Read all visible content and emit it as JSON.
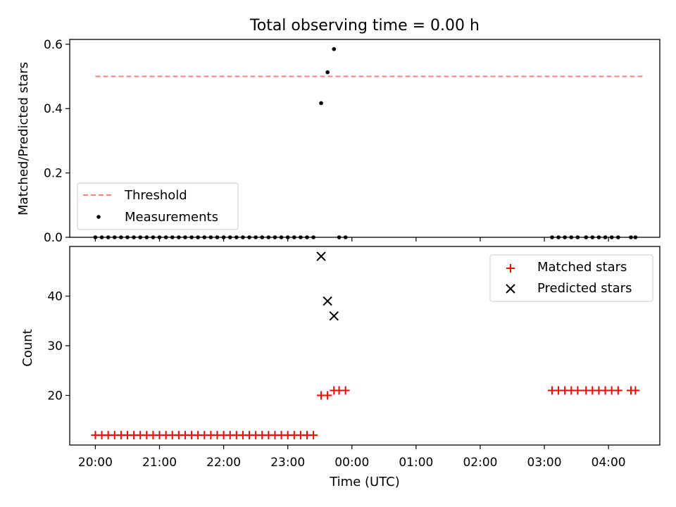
{
  "title": "Total observing time = 0.00 h",
  "chart_data": [
    {
      "type": "scatter",
      "panel": "top",
      "ylabel": "Matched/Predicted stars",
      "ylim": [
        0,
        0.615
      ],
      "yticks": [
        0.0,
        0.2,
        0.4,
        0.6
      ],
      "ytick_labels": [
        "0.0",
        "0.2",
        "0.4",
        "0.6"
      ],
      "grid": false,
      "legend_position": "lower-left",
      "series": [
        {
          "name": "Threshold",
          "kind": "line",
          "style": "dashed",
          "color": "#ff7f7f",
          "points": [
            [
              0.0,
              0.5
            ],
            [
              8.55,
              0.5
            ]
          ]
        },
        {
          "name": "Measurements",
          "kind": "scatter",
          "marker": "dot",
          "color": "#000000",
          "points": [
            [
              0.0,
              0
            ],
            [
              0.1,
              0
            ],
            [
              0.2,
              0
            ],
            [
              0.3,
              0
            ],
            [
              0.4,
              0
            ],
            [
              0.5,
              0
            ],
            [
              0.6,
              0
            ],
            [
              0.7,
              0
            ],
            [
              0.8,
              0
            ],
            [
              0.9,
              0
            ],
            [
              1.0,
              0
            ],
            [
              1.1,
              0
            ],
            [
              1.2,
              0
            ],
            [
              1.3,
              0
            ],
            [
              1.4,
              0
            ],
            [
              1.5,
              0
            ],
            [
              1.6,
              0
            ],
            [
              1.7,
              0
            ],
            [
              1.8,
              0
            ],
            [
              1.9,
              0
            ],
            [
              2.0,
              0
            ],
            [
              2.1,
              0
            ],
            [
              2.2,
              0
            ],
            [
              2.3,
              0
            ],
            [
              2.4,
              0
            ],
            [
              2.5,
              0
            ],
            [
              2.6,
              0
            ],
            [
              2.7,
              0
            ],
            [
              2.8,
              0
            ],
            [
              2.9,
              0
            ],
            [
              3.0,
              0
            ],
            [
              3.1,
              0
            ],
            [
              3.2,
              0
            ],
            [
              3.3,
              0
            ],
            [
              3.4,
              0
            ],
            [
              3.52,
              0.417
            ],
            [
              3.62,
              0.513
            ],
            [
              3.72,
              0.585
            ],
            [
              3.8,
              0
            ],
            [
              3.9,
              0
            ],
            [
              7.12,
              0
            ],
            [
              7.22,
              0
            ],
            [
              7.32,
              0
            ],
            [
              7.42,
              0
            ],
            [
              7.52,
              0
            ],
            [
              7.65,
              0
            ],
            [
              7.75,
              0
            ],
            [
              7.85,
              0
            ],
            [
              7.95,
              0
            ],
            [
              8.05,
              0
            ],
            [
              8.15,
              0
            ],
            [
              8.35,
              0
            ],
            [
              8.42,
              0
            ]
          ]
        }
      ]
    },
    {
      "type": "scatter",
      "panel": "bottom",
      "xlabel": "Time (UTC)",
      "ylabel": "Count",
      "xlim": [
        -0.4,
        8.8
      ],
      "ylim": [
        10,
        50
      ],
      "yticks": [
        20,
        30,
        40
      ],
      "ytick_labels": [
        "20",
        "30",
        "40"
      ],
      "xticks": [
        0,
        1,
        2,
        3,
        4,
        5,
        6,
        7,
        8
      ],
      "xtick_labels": [
        "20:00",
        "21:00",
        "22:00",
        "23:00",
        "00:00",
        "01:00",
        "02:00",
        "03:00",
        "04:00"
      ],
      "grid": false,
      "legend_position": "upper-right",
      "series": [
        {
          "name": "Matched stars",
          "kind": "scatter",
          "marker": "plus",
          "color": "#ff0000",
          "points": [
            [
              0.0,
              12
            ],
            [
              0.1,
              12
            ],
            [
              0.2,
              12
            ],
            [
              0.3,
              12
            ],
            [
              0.4,
              12
            ],
            [
              0.5,
              12
            ],
            [
              0.6,
              12
            ],
            [
              0.7,
              12
            ],
            [
              0.8,
              12
            ],
            [
              0.9,
              12
            ],
            [
              1.0,
              12
            ],
            [
              1.1,
              12
            ],
            [
              1.2,
              12
            ],
            [
              1.3,
              12
            ],
            [
              1.4,
              12
            ],
            [
              1.5,
              12
            ],
            [
              1.6,
              12
            ],
            [
              1.7,
              12
            ],
            [
              1.8,
              12
            ],
            [
              1.9,
              12
            ],
            [
              2.0,
              12
            ],
            [
              2.1,
              12
            ],
            [
              2.2,
              12
            ],
            [
              2.3,
              12
            ],
            [
              2.4,
              12
            ],
            [
              2.5,
              12
            ],
            [
              2.6,
              12
            ],
            [
              2.7,
              12
            ],
            [
              2.8,
              12
            ],
            [
              2.9,
              12
            ],
            [
              3.0,
              12
            ],
            [
              3.1,
              12
            ],
            [
              3.2,
              12
            ],
            [
              3.3,
              12
            ],
            [
              3.4,
              12
            ],
            [
              3.52,
              20
            ],
            [
              3.62,
              20
            ],
            [
              3.72,
              21
            ],
            [
              3.8,
              21
            ],
            [
              3.9,
              21
            ],
            [
              7.12,
              21
            ],
            [
              7.22,
              21
            ],
            [
              7.32,
              21
            ],
            [
              7.42,
              21
            ],
            [
              7.52,
              21
            ],
            [
              7.65,
              21
            ],
            [
              7.75,
              21
            ],
            [
              7.85,
              21
            ],
            [
              7.95,
              21
            ],
            [
              8.05,
              21
            ],
            [
              8.15,
              21
            ],
            [
              8.35,
              21
            ],
            [
              8.42,
              21
            ]
          ]
        },
        {
          "name": "Predicted stars",
          "kind": "scatter",
          "marker": "x",
          "color": "#000000",
          "points": [
            [
              3.52,
              48
            ],
            [
              3.62,
              39
            ],
            [
              3.72,
              36
            ]
          ]
        }
      ]
    }
  ]
}
